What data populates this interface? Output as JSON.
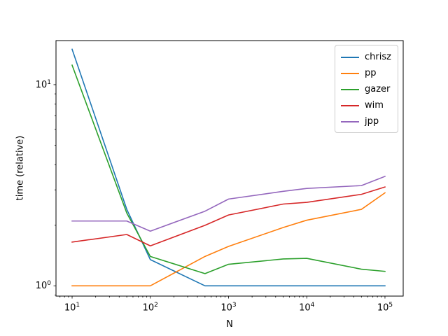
{
  "chart_data": {
    "type": "line",
    "title": "",
    "xlabel": "N",
    "ylabel": "time (relative)",
    "x_scale": "log",
    "y_scale": "log",
    "grid": false,
    "legend_position": "upper right",
    "x": [
      10,
      50,
      100,
      500,
      1000,
      5000,
      10000,
      50000,
      100000
    ],
    "series": [
      {
        "name": "chrisz",
        "color": "#1f77b4",
        "values": [
          15.0,
          2.4,
          1.35,
          1.0,
          1.0,
          1.0,
          1.0,
          1.0,
          1.0
        ]
      },
      {
        "name": "pp",
        "color": "#ff7f0e",
        "values": [
          1.0,
          1.0,
          1.0,
          1.4,
          1.57,
          1.95,
          2.12,
          2.4,
          2.9
        ]
      },
      {
        "name": "gazer",
        "color": "#2ca02c",
        "values": [
          12.5,
          2.3,
          1.4,
          1.15,
          1.28,
          1.36,
          1.37,
          1.21,
          1.18
        ]
      },
      {
        "name": "wim",
        "color": "#d62728",
        "values": [
          1.65,
          1.8,
          1.58,
          2.0,
          2.25,
          2.55,
          2.6,
          2.85,
          3.1
        ]
      },
      {
        "name": "jpp",
        "color": "#9467bd",
        "values": [
          2.1,
          2.1,
          1.87,
          2.35,
          2.7,
          2.95,
          3.05,
          3.15,
          3.5
        ]
      }
    ],
    "x_tick_exponents": [
      1,
      2,
      3,
      4,
      5
    ],
    "y_tick_exponents": [
      0,
      1
    ],
    "xlim_exp": [
      0.794,
      5.233
    ],
    "ylim_exp": [
      -0.051,
      1.219
    ],
    "tick_base": "10"
  }
}
